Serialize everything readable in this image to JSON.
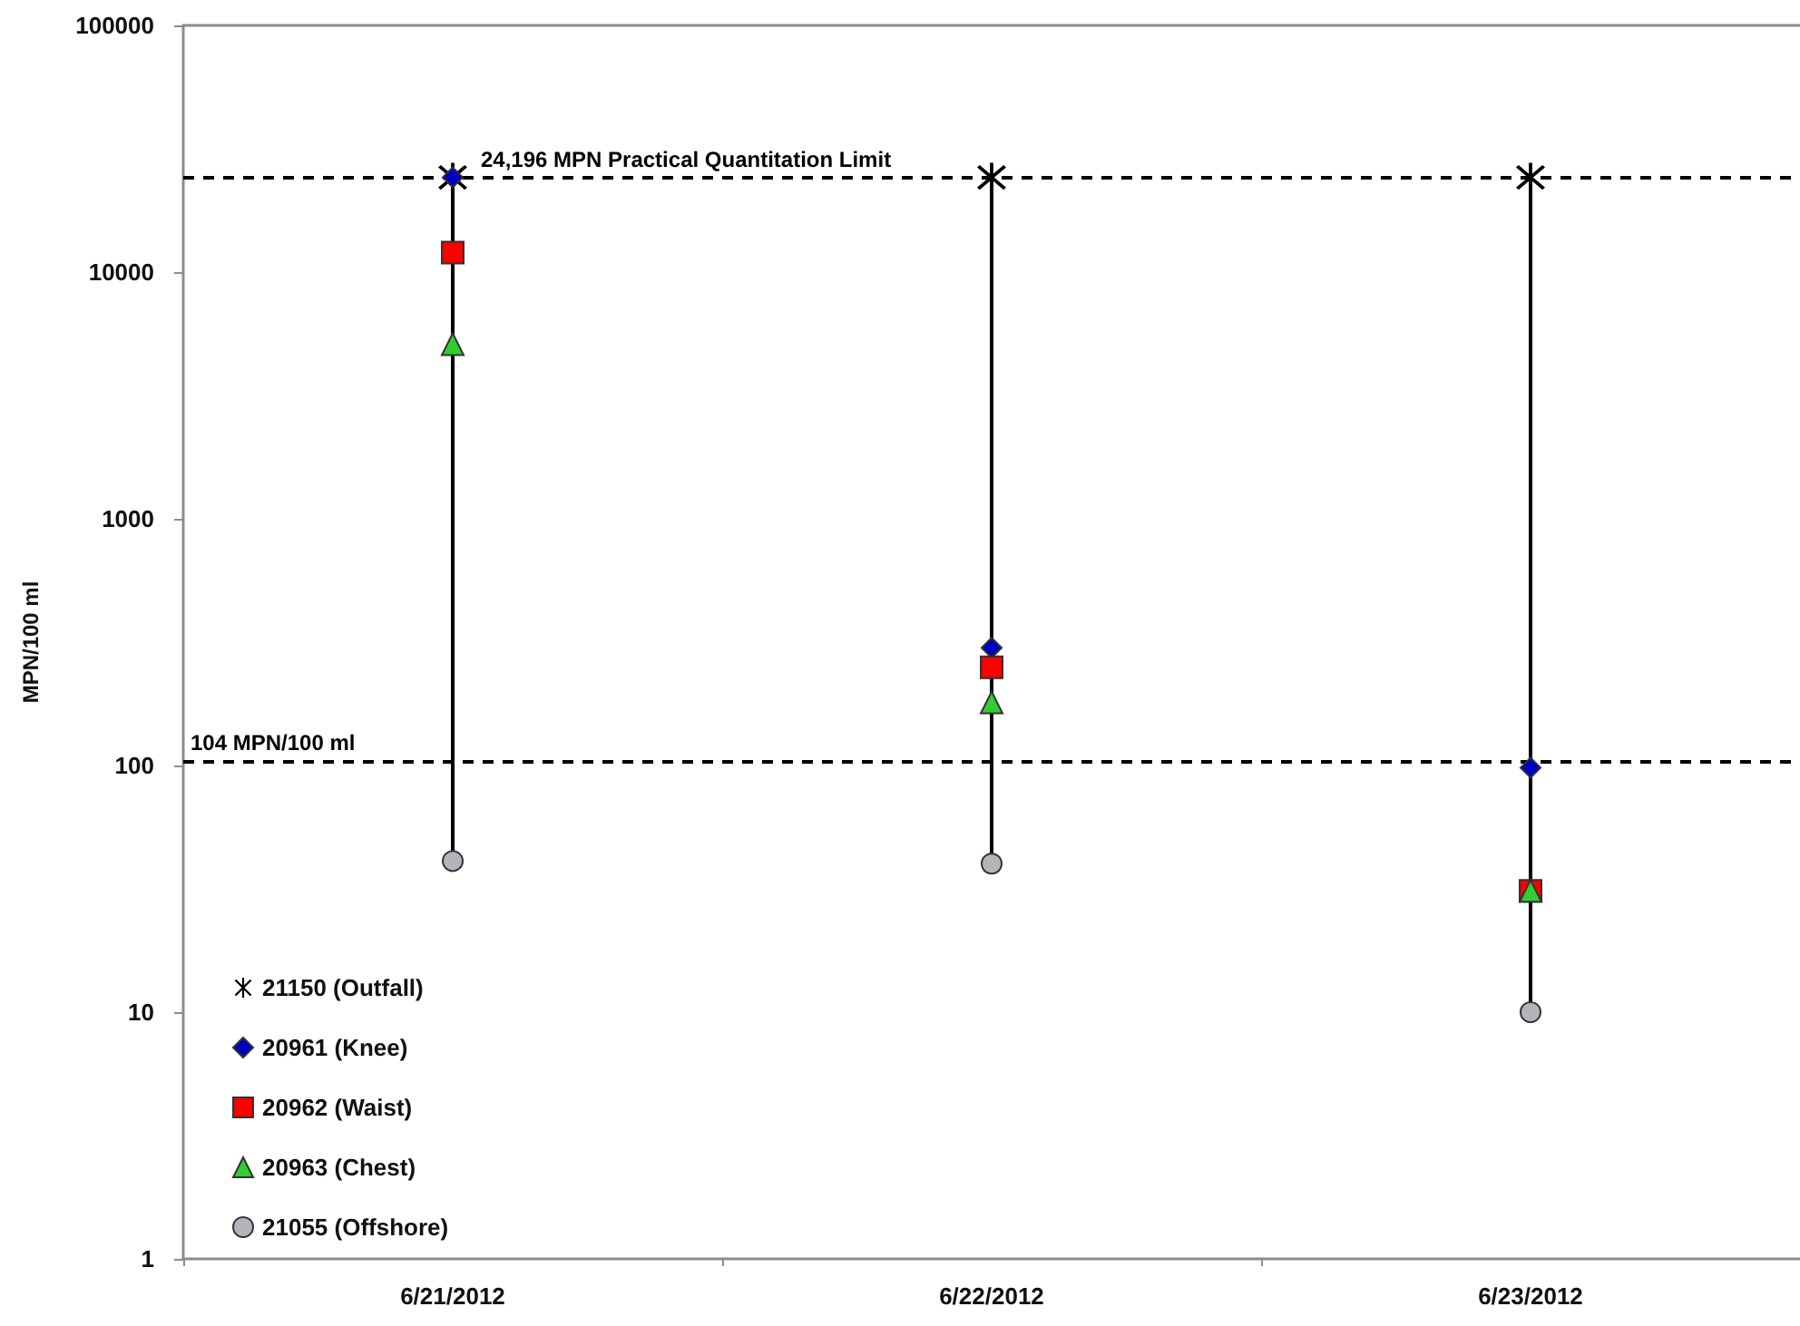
{
  "chart_data": {
    "type": "scatter",
    "ylabel": "MPN/100 ml",
    "categories": [
      "6/21/2012",
      "6/22/2012",
      "6/23/2012"
    ],
    "series": [
      {
        "type": "line",
        "x": [
          "6/21/2012",
          "6/21/2012"
        ],
        "values": [
          41,
          24196
        ],
        "color": "#000000"
      },
      {
        "type": "line",
        "x": [
          "6/22/2012",
          "6/22/2012"
        ],
        "values": [
          40,
          24196
        ],
        "color": "#000000"
      },
      {
        "type": "line",
        "x": [
          "6/23/2012",
          "6/23/2012"
        ],
        "values": [
          10,
          24196
        ],
        "color": "#000000"
      },
      {
        "name": "21150 (Outfall)",
        "color": "#000000",
        "marker": "cross",
        "values": [
          24196,
          24196,
          24196
        ]
      },
      {
        "name": "20961 (Knee)",
        "color": "#0000c0",
        "marker": "diamond",
        "values": [
          24196,
          300,
          98
        ]
      },
      {
        "name": "20962 (Waist)",
        "color": "#ff0000",
        "marker": "square",
        "values": [
          12000,
          250,
          31
        ]
      },
      {
        "name": "20963 (Chest)",
        "color": "#33cc33",
        "marker": "triangle",
        "values": [
          5100,
          180,
          31
        ]
      },
      {
        "name": "21055 (Offshore)",
        "color": "#b4b4bc",
        "marker": "circle",
        "values": [
          41,
          40,
          10
        ]
      }
    ],
    "log": "y",
    "ylim": [
      1,
      100000
    ],
    "yticks": [
      1,
      10,
      100,
      1000,
      10000,
      100000
    ],
    "legend": "bottom left",
    "ref_lines": [
      {
        "axis": "y",
        "value": 24196,
        "label": "24,196 MPN Practical Quantitation Limit",
        "color": "#000000",
        "line_style": "dashed"
      },
      {
        "axis": "y",
        "value": 104,
        "label": "104 MPN/100 ml",
        "color": "#000000",
        "line_style": "dashed"
      }
    ]
  }
}
